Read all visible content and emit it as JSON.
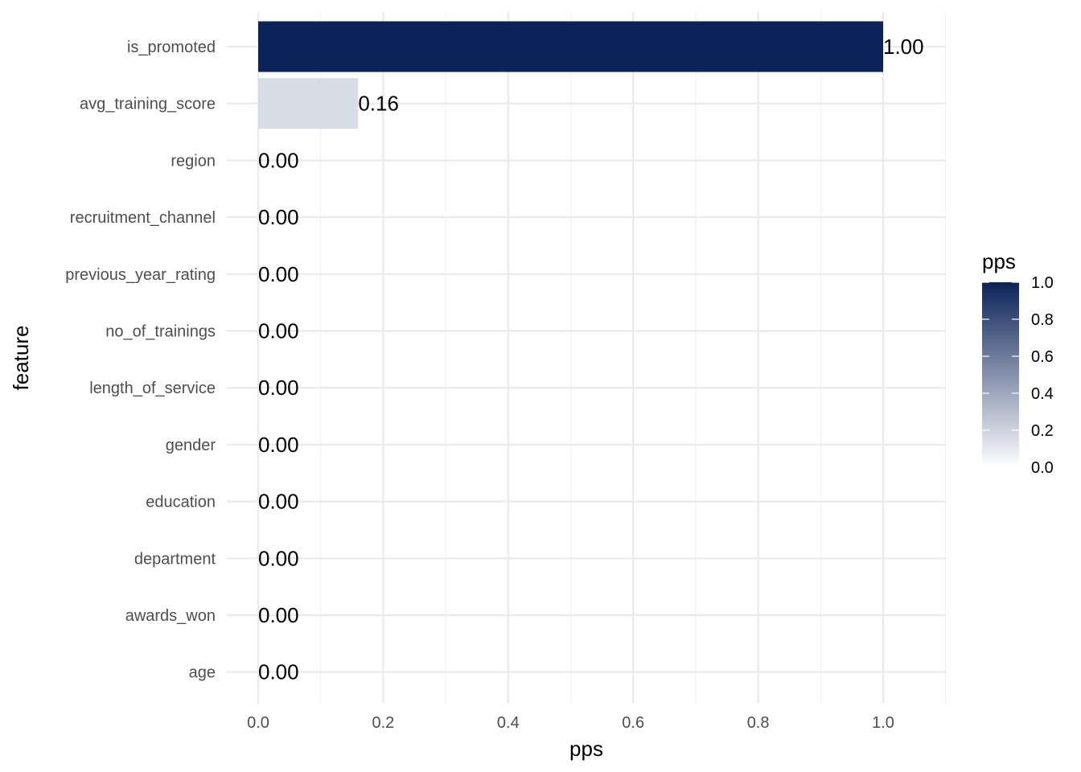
{
  "chart_data": {
    "type": "bar",
    "orientation": "horizontal",
    "categories": [
      "is_promoted",
      "avg_training_score",
      "region",
      "recruitment_channel",
      "previous_year_rating",
      "no_of_trainings",
      "length_of_service",
      "gender",
      "education",
      "department",
      "awards_won",
      "age"
    ],
    "values": [
      1.0,
      0.16,
      0.0,
      0.0,
      0.0,
      0.0,
      0.0,
      0.0,
      0.0,
      0.0,
      0.0,
      0.0
    ],
    "data_labels": [
      "1.00",
      "0.16",
      "0.00",
      "0.00",
      "0.00",
      "0.00",
      "0.00",
      "0.00",
      "0.00",
      "0.00",
      "0.00",
      "0.00"
    ],
    "xlabel": "pps",
    "ylabel": "feature",
    "xlim": [
      0,
      1.1
    ],
    "x_ticks": [
      0.0,
      0.2,
      0.4,
      0.6,
      0.8,
      1.0
    ],
    "x_tick_labels": [
      "0.0",
      "0.2",
      "0.4",
      "0.6",
      "0.8",
      "1.0"
    ],
    "grid": true,
    "legend": {
      "title": "pps",
      "placement": "right",
      "ticks": [
        1.0,
        0.8,
        0.6,
        0.4,
        0.2,
        0.0
      ],
      "tick_labels": [
        "1.0",
        "0.8",
        "0.6",
        "0.4",
        "0.2",
        "0.0"
      ],
      "low_color": "#ffffff",
      "high_color": "#0c2359"
    },
    "colors": {
      "background": "#ffffff",
      "grid_major": "#ebebeb",
      "grid_minor": "#f2f2f2"
    }
  }
}
